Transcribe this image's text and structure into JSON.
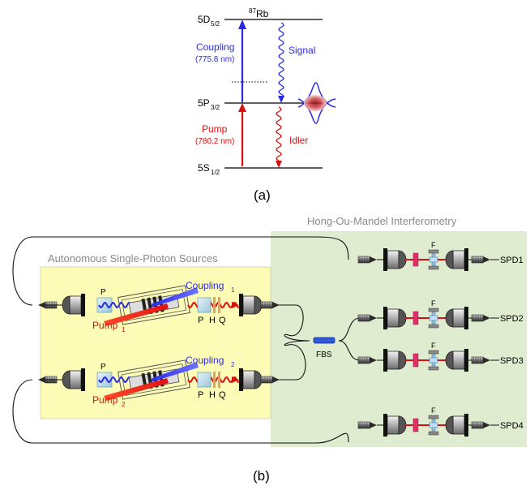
{
  "panel_a": {
    "isotope_sup": "87",
    "isotope": "Rb",
    "levels": [
      {
        "base": "5D",
        "sub": "5/2"
      },
      {
        "base": "5P",
        "sub": "3/2"
      },
      {
        "base": "5S",
        "sub": "1/2"
      }
    ],
    "coupling_label": "Coupling",
    "coupling_wavelength": "(775.8 nm)",
    "pump_label": "Pump",
    "pump_wavelength": "(780.2 nm)",
    "signal_label": "Signal",
    "idler_label": "Idler",
    "caption": "(a)"
  },
  "panel_b": {
    "hom_title": "Hong-Ou-Mandel Interferometry",
    "sources_title": "Autonomous Single-Photon Sources",
    "source1": {
      "coupling": "Coupling",
      "coupling_sub": "1",
      "pump": "Pump",
      "pump_sub": "1"
    },
    "source2": {
      "coupling": "Coupling",
      "coupling_sub": "2",
      "pump": "Pump",
      "pump_sub": "2"
    },
    "polarizer_label": "P",
    "waveplate_labels": [
      "P",
      "H",
      "Q"
    ],
    "fbs_label": "FBS",
    "filter_label": "F",
    "detectors": [
      "SPD1",
      "SPD2",
      "SPD3",
      "SPD4"
    ],
    "caption": "(b)"
  },
  "colors": {
    "coupling_blue": "#2a2ae6",
    "pump_red": "#d81010",
    "sources_bg": "#fdfcb6",
    "hom_bg": "#e0ecd0"
  }
}
